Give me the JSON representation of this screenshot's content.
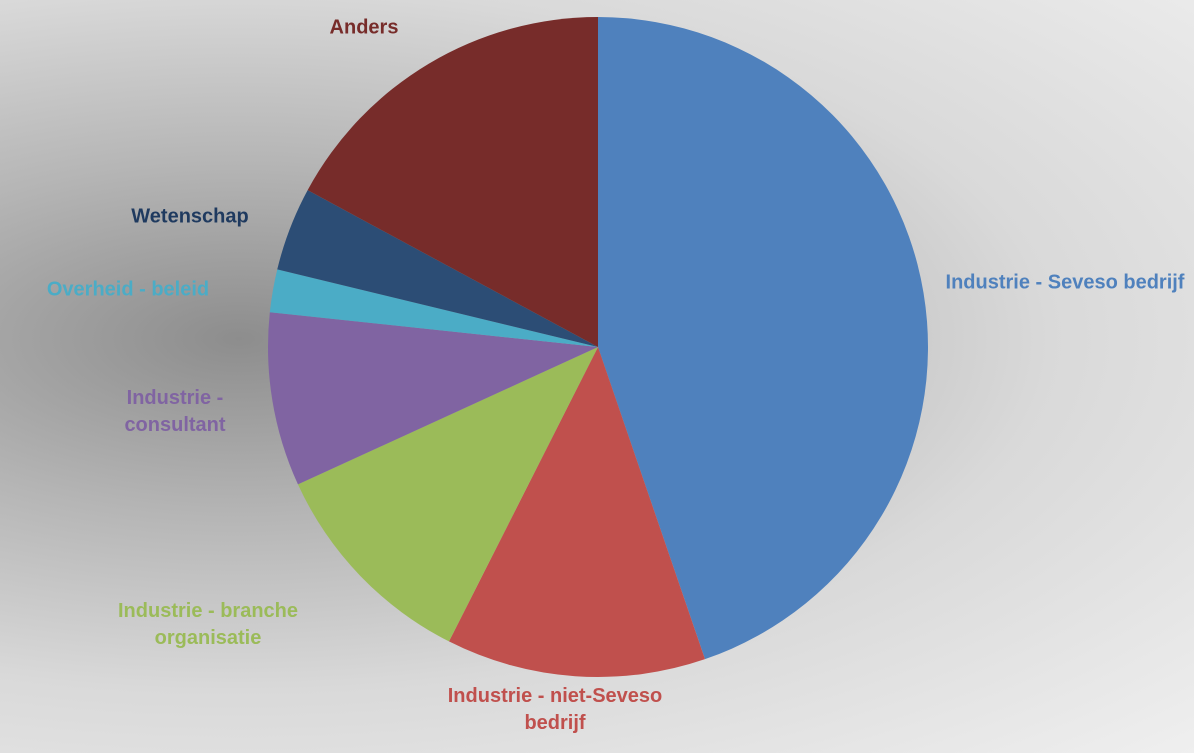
{
  "chart_data": {
    "type": "pie",
    "categories": [
      "Industrie - Seveso bedrijf",
      "Industrie - niet-Seveso bedrijf",
      "Industrie - branche organisatie",
      "Industrie - consultant",
      "Overheid - beleid",
      "Wetenschap",
      "Anders"
    ],
    "values": [
      44.7,
      12.7,
      10.7,
      8.5,
      2.1,
      4.1,
      17.1
    ],
    "colors": [
      "#4f81bd",
      "#c0504d",
      "#9bbb59",
      "#8064a2",
      "#4bacc6",
      "#2c4d75",
      "#772c2a"
    ]
  }
}
